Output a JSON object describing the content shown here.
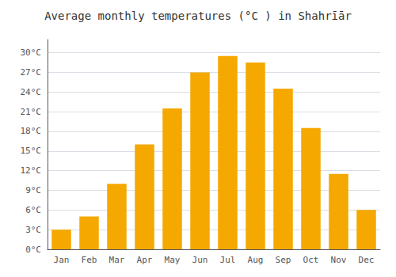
{
  "chart_data": {
    "type": "bar",
    "title": "Average monthly temperatures (°C ) in Shahrīār",
    "categories": [
      "Jan",
      "Feb",
      "Mar",
      "Apr",
      "May",
      "Jun",
      "Jul",
      "Aug",
      "Sep",
      "Oct",
      "Nov",
      "Dec"
    ],
    "values": [
      3.0,
      5.0,
      10.0,
      16.0,
      21.5,
      27.0,
      29.5,
      28.5,
      24.5,
      18.5,
      11.5,
      6.0
    ],
    "color": "#F5A800",
    "ylim": [
      0,
      32
    ],
    "yticks": [
      {
        "value": 0,
        "label": "0°C"
      },
      {
        "value": 3,
        "label": "3°C"
      },
      {
        "value": 6,
        "label": "6°C"
      },
      {
        "value": 9,
        "label": "9°C"
      },
      {
        "value": 12,
        "label": "12°C"
      },
      {
        "value": 15,
        "label": "15°C"
      },
      {
        "value": 18,
        "label": "18°C"
      },
      {
        "value": 21,
        "label": "21°C"
      },
      {
        "value": 24,
        "label": "24°C"
      },
      {
        "value": 27,
        "label": "27°C"
      },
      {
        "value": 30,
        "label": "30°C"
      }
    ],
    "grid": true
  }
}
